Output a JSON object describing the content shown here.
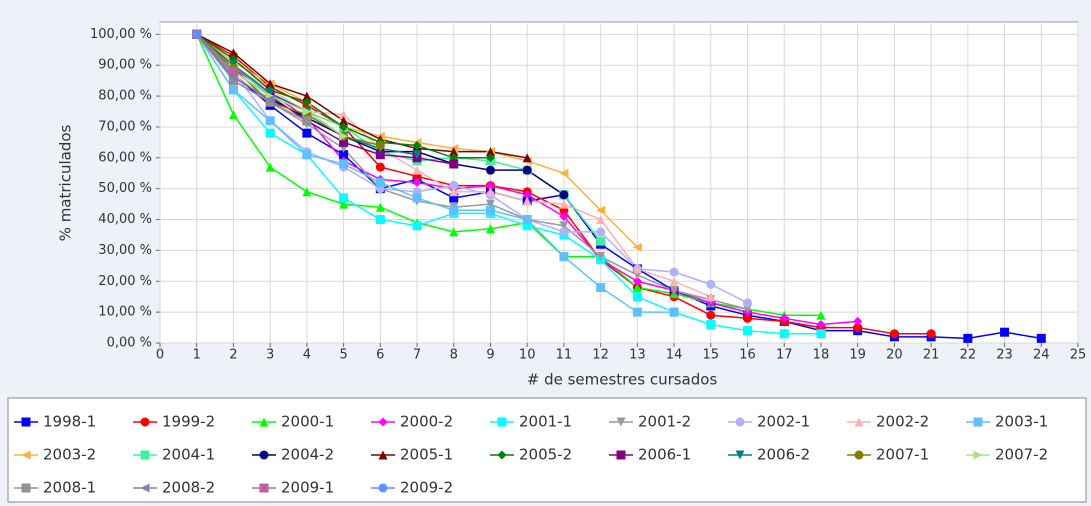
{
  "chart_data": {
    "type": "line",
    "x_label": "# de semestres cursados",
    "y_label": "% matriculados",
    "x": [
      1,
      2,
      3,
      4,
      5,
      6,
      7,
      8,
      9,
      10,
      11,
      12,
      13,
      14,
      15,
      16,
      17,
      18,
      19,
      20,
      21,
      22,
      23,
      24
    ],
    "xlim": [
      0,
      25
    ],
    "xticks": [
      0,
      1,
      2,
      3,
      4,
      5,
      6,
      7,
      8,
      9,
      10,
      11,
      12,
      13,
      14,
      15,
      16,
      17,
      18,
      19,
      20,
      21,
      22,
      23,
      24,
      25
    ],
    "ylim": [
      0,
      104
    ],
    "yticks": [
      {
        "value": 0,
        "label": "0,00 %"
      },
      {
        "value": 10,
        "label": "10,00 %"
      },
      {
        "value": 20,
        "label": "20,00 %"
      },
      {
        "value": 30,
        "label": "30,00 %"
      },
      {
        "value": 40,
        "label": "40,00 %"
      },
      {
        "value": 50,
        "label": "50,00 %"
      },
      {
        "value": 60,
        "label": "60,00 %"
      },
      {
        "value": 70,
        "label": "70,00 %"
      },
      {
        "value": 80,
        "label": "80,00 %"
      },
      {
        "value": 90,
        "label": "90,00 %"
      },
      {
        "value": 100,
        "label": "100,00 %"
      }
    ],
    "grid": true,
    "legend": "bottom",
    "series": [
      {
        "name": "1998-1",
        "color": "#0000ff",
        "marker": "square",
        "values": [
          100,
          87,
          77,
          68,
          61,
          50,
          53,
          47,
          49,
          46,
          48,
          32,
          24,
          17,
          12,
          9,
          7,
          4,
          4,
          2,
          2,
          1.5,
          3.5,
          1.5
        ]
      },
      {
        "name": "1999-2",
        "color": "#ff0000",
        "marker": "circle",
        "values": [
          100,
          93,
          83,
          77,
          70,
          57,
          54,
          51,
          51,
          49,
          43,
          27,
          18,
          15,
          9,
          8,
          7,
          5,
          5,
          3,
          3,
          null,
          null,
          null
        ]
      },
      {
        "name": "2000-1",
        "color": "#00ff00",
        "marker": "triangle-up",
        "values": [
          100,
          74,
          57,
          49,
          45,
          44,
          39,
          36,
          37,
          39,
          28,
          28,
          18,
          16,
          13,
          11,
          9,
          9,
          null,
          null,
          null,
          null,
          null,
          null
        ]
      },
      {
        "name": "2000-2",
        "color": "#ff00ff",
        "marker": "diamond",
        "values": [
          100,
          89,
          81,
          73,
          59,
          53,
          52,
          50,
          51,
          48,
          41,
          27,
          20,
          17,
          13,
          10,
          8,
          6,
          7,
          null,
          null,
          null,
          null,
          null
        ]
      },
      {
        "name": "2001-1",
        "color": "#00ffff",
        "marker": "square",
        "values": [
          100,
          82,
          68,
          61,
          47,
          40,
          38,
          42,
          42,
          38,
          35,
          27,
          15,
          10,
          6,
          4,
          3,
          3,
          null,
          null,
          null,
          null,
          null,
          null
        ]
      },
      {
        "name": "2001-2",
        "color": "#999999",
        "marker": "triangle-down",
        "values": [
          100,
          87,
          78,
          71,
          63,
          50,
          46,
          44,
          45,
          40,
          38,
          28,
          22,
          17,
          14,
          11,
          null,
          null,
          null,
          null,
          null,
          null,
          null,
          null
        ]
      },
      {
        "name": "2002-1",
        "color": "#b0b0ff",
        "marker": "circle",
        "values": [
          100,
          88,
          72,
          62,
          57,
          50,
          49,
          51,
          48,
          40,
          36,
          36,
          24,
          23,
          19,
          13,
          null,
          null,
          null,
          null,
          null,
          null,
          null,
          null
        ]
      },
      {
        "name": "2002-2",
        "color": "#ffb0b0",
        "marker": "triangle-up",
        "values": [
          100,
          90,
          82,
          75,
          74,
          63,
          56,
          49,
          49,
          46,
          45,
          40,
          24,
          20,
          15,
          null,
          null,
          null,
          null,
          null,
          null,
          null,
          null,
          null
        ]
      },
      {
        "name": "2003-1",
        "color": "#60c0ff",
        "marker": "square",
        "values": [
          100,
          82,
          72,
          61,
          58,
          52,
          47,
          43,
          43,
          40,
          28,
          18,
          10,
          10,
          null,
          null,
          null,
          null,
          null,
          null,
          null,
          null,
          null,
          null
        ]
      },
      {
        "name": "2003-2",
        "color": "#ffb040",
        "marker": "triangle-left",
        "values": [
          100,
          91,
          84,
          78,
          70,
          67,
          65,
          63,
          62,
          59,
          55,
          43,
          31,
          null,
          null,
          null,
          null,
          null,
          null,
          null,
          null,
          null,
          null,
          null
        ]
      },
      {
        "name": "2004-1",
        "color": "#40f0a0",
        "marker": "square",
        "values": [
          100,
          90,
          80,
          75,
          70,
          62,
          59,
          60,
          59,
          56,
          48,
          33,
          null,
          null,
          null,
          null,
          null,
          null,
          null,
          null,
          null,
          null,
          null,
          null
        ]
      },
      {
        "name": "2004-2",
        "color": "#000080",
        "marker": "circle",
        "values": [
          100,
          86,
          79,
          73,
          67,
          62,
          62,
          58,
          56,
          56,
          48,
          null,
          null,
          null,
          null,
          null,
          null,
          null,
          null,
          null,
          null,
          null,
          null,
          null
        ]
      },
      {
        "name": "2005-1",
        "color": "#800000",
        "marker": "triangle-up",
        "values": [
          100,
          94,
          84,
          80,
          72,
          66,
          63,
          62,
          62,
          60,
          null,
          null,
          null,
          null,
          null,
          null,
          null,
          null,
          null,
          null,
          null,
          null,
          null,
          null
        ]
      },
      {
        "name": "2005-2",
        "color": "#008000",
        "marker": "diamond",
        "values": [
          100,
          92,
          82,
          78,
          70,
          65,
          64,
          60,
          60,
          null,
          null,
          null,
          null,
          null,
          null,
          null,
          null,
          null,
          null,
          null,
          null,
          null,
          null,
          null
        ]
      },
      {
        "name": "2006-1",
        "color": "#800080",
        "marker": "square",
        "values": [
          100,
          88,
          80,
          72,
          65,
          61,
          60,
          58,
          null,
          null,
          null,
          null,
          null,
          null,
          null,
          null,
          null,
          null,
          null,
          null,
          null,
          null,
          null,
          null
        ]
      },
      {
        "name": "2006-2",
        "color": "#008080",
        "marker": "triangle-down",
        "values": [
          100,
          90,
          81,
          75,
          67,
          63,
          61,
          null,
          null,
          null,
          null,
          null,
          null,
          null,
          null,
          null,
          null,
          null,
          null,
          null,
          null,
          null,
          null,
          null
        ]
      },
      {
        "name": "2007-1",
        "color": "#808000",
        "marker": "circle",
        "values": [
          100,
          89,
          78,
          74,
          67,
          64,
          null,
          null,
          null,
          null,
          null,
          null,
          null,
          null,
          null,
          null,
          null,
          null,
          null,
          null,
          null,
          null,
          null,
          null
        ]
      },
      {
        "name": "2007-2",
        "color": "#b0e080",
        "marker": "triangle-right",
        "values": [
          100,
          88,
          80,
          75,
          67,
          null,
          null,
          null,
          null,
          null,
          null,
          null,
          null,
          null,
          null,
          null,
          null,
          null,
          null,
          null,
          null,
          null,
          null,
          null
        ]
      },
      {
        "name": "2008-1",
        "color": "#909090",
        "marker": "square",
        "values": [
          100,
          85,
          78,
          72,
          null,
          null,
          null,
          null,
          null,
          null,
          null,
          null,
          null,
          null,
          null,
          null,
          null,
          null,
          null,
          null,
          null,
          null,
          null,
          null
        ]
      },
      {
        "name": "2008-2",
        "color": "#8080b0",
        "marker": "triangle-left",
        "values": [
          100,
          86,
          79,
          null,
          null,
          null,
          null,
          null,
          null,
          null,
          null,
          null,
          null,
          null,
          null,
          null,
          null,
          null,
          null,
          null,
          null,
          null,
          null,
          null
        ]
      },
      {
        "name": "2009-1",
        "color": "#c060a0",
        "marker": "square",
        "values": [
          100,
          88,
          null,
          null,
          null,
          null,
          null,
          null,
          null,
          null,
          null,
          null,
          null,
          null,
          null,
          null,
          null,
          null,
          null,
          null,
          null,
          null,
          null,
          null
        ]
      },
      {
        "name": "2009-2",
        "color": "#6090ff",
        "marker": "circle",
        "values": [
          100,
          null,
          null,
          null,
          null,
          null,
          null,
          null,
          null,
          null,
          null,
          null,
          null,
          null,
          null,
          null,
          null,
          null,
          null,
          null,
          null,
          null,
          null,
          null
        ]
      }
    ]
  }
}
